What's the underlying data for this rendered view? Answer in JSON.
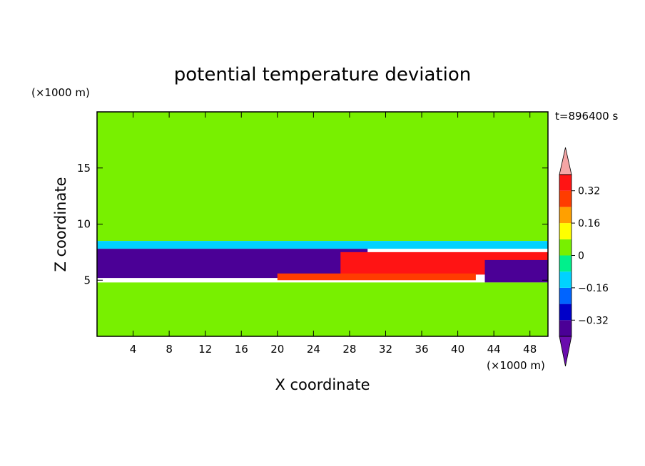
{
  "chart_data": {
    "type": "heatmap",
    "title": "potential temperature deviation",
    "xlabel": "X coordinate",
    "ylabel": "Z coordinate",
    "x_unit": "(×1000 m)",
    "y_unit": "(×1000 m)",
    "time_label": "t=896400 s",
    "xlim": [
      0,
      50
    ],
    "ylim": [
      0,
      20
    ],
    "x_ticks": [
      4,
      8,
      12,
      16,
      20,
      24,
      28,
      32,
      36,
      40,
      44,
      48
    ],
    "y_ticks": [
      5,
      10,
      15
    ],
    "colorbar": {
      "levels": [
        -0.4,
        -0.32,
        -0.24,
        -0.16,
        -0.08,
        0,
        0.08,
        0.16,
        0.24,
        0.32,
        0.4
      ],
      "tick_labels": [
        "0.32",
        "0.16",
        "0",
        "−0.16",
        "−0.32"
      ],
      "tick_values": [
        0.32,
        0.16,
        0,
        -0.16,
        -0.32
      ],
      "colors": [
        "#6a0dad",
        "#4b0096",
        "#0000c8",
        "#0064ff",
        "#00d2ff",
        "#00f08c",
        "#78f000",
        "#ffff00",
        "#ffa000",
        "#ff3c00",
        "#ff1414",
        "#f5a5a5"
      ]
    },
    "regions": [
      {
        "x": [
          0,
          50
        ],
        "z": [
          14,
          20
        ],
        "value": 0.02
      },
      {
        "x": [
          0,
          50
        ],
        "z": [
          8.5,
          14
        ],
        "value": 0.03
      },
      {
        "x": [
          0,
          50
        ],
        "z": [
          7.8,
          8.5
        ],
        "value": -0.1
      },
      {
        "x": [
          0,
          30
        ],
        "z": [
          5.2,
          7.8
        ],
        "value": -0.35
      },
      {
        "x": [
          27,
          50
        ],
        "z": [
          5.5,
          7.5
        ],
        "value": 0.38
      },
      {
        "x": [
          20,
          42
        ],
        "z": [
          5.0,
          5.6
        ],
        "value": 0.3
      },
      {
        "x": [
          43,
          50
        ],
        "z": [
          4.8,
          6.8
        ],
        "value": -0.35
      },
      {
        "x": [
          0,
          50
        ],
        "z": [
          0,
          4.8
        ],
        "value": 0.03
      }
    ]
  }
}
